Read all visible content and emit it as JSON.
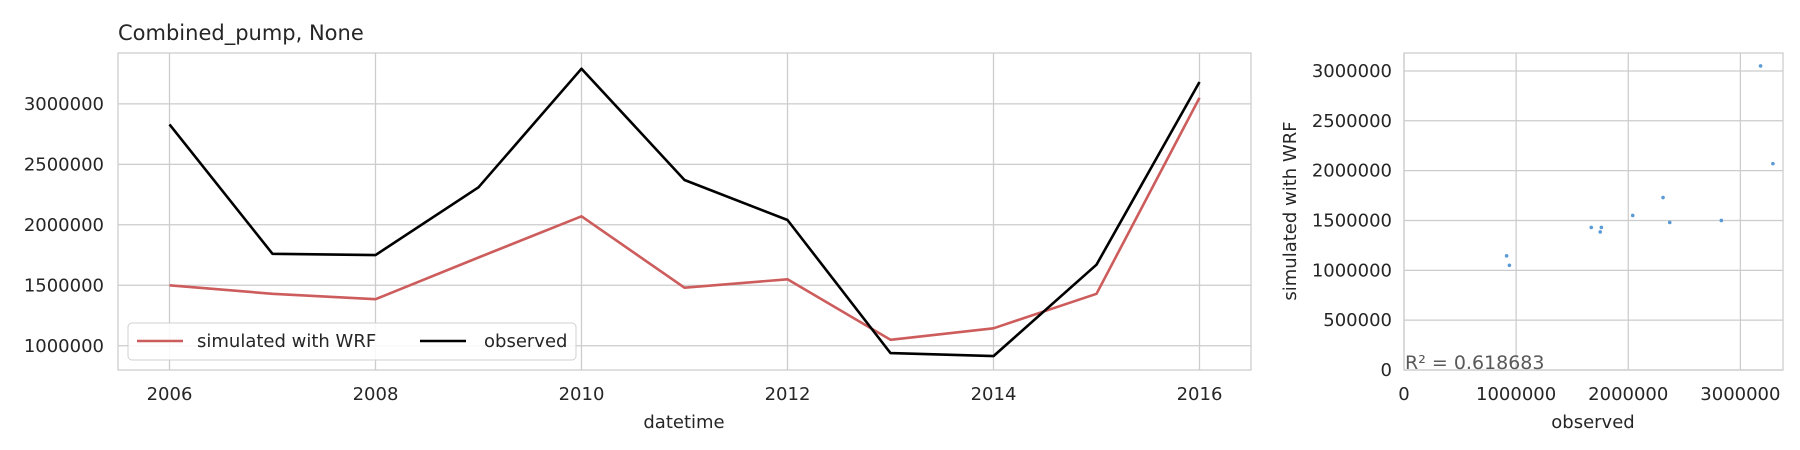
{
  "chart_data": [
    {
      "type": "line",
      "title": "Combined_pump, None",
      "xlabel": "datetime",
      "ylabel": "",
      "xlim": [
        2005.5,
        2016.5
      ],
      "ylim": [
        800000,
        3420000
      ],
      "xticks": [
        2006,
        2008,
        2010,
        2012,
        2014,
        2016
      ],
      "yticks": [
        1000000,
        1500000,
        2000000,
        2500000,
        3000000
      ],
      "x": [
        2006,
        2007,
        2008,
        2009,
        2010,
        2011,
        2012,
        2013,
        2014,
        2015,
        2016
      ],
      "series": [
        {
          "name": "simulated with WRF",
          "color": "#cd5c5c",
          "values": [
            1500000,
            1430000,
            1385000,
            1730000,
            2070000,
            1480000,
            1550000,
            1050000,
            1145000,
            1430000,
            3050000
          ]
        },
        {
          "name": "observed",
          "color": "#000000",
          "values": [
            2830000,
            1760000,
            1750000,
            2310000,
            3290000,
            2370000,
            2040000,
            940000,
            915000,
            1670000,
            3180000
          ]
        }
      ],
      "grid": true,
      "legend": {
        "placement": "lower-left",
        "columns": 2
      }
    },
    {
      "type": "scatter",
      "xlabel": "observed",
      "ylabel": "simulated with WRF",
      "xlim": [
        0,
        3380000
      ],
      "ylim": [
        0,
        3180000
      ],
      "xticks": [
        0,
        1000000,
        2000000,
        3000000
      ],
      "yticks": [
        0,
        500000,
        1000000,
        1500000,
        2000000,
        2500000,
        3000000
      ],
      "points": [
        {
          "x": 2830000,
          "y": 1500000
        },
        {
          "x": 1760000,
          "y": 1430000
        },
        {
          "x": 1750000,
          "y": 1385000
        },
        {
          "x": 2310000,
          "y": 1730000
        },
        {
          "x": 3290000,
          "y": 2070000
        },
        {
          "x": 2370000,
          "y": 1480000
        },
        {
          "x": 2040000,
          "y": 1550000
        },
        {
          "x": 940000,
          "y": 1050000
        },
        {
          "x": 915000,
          "y": 1145000
        },
        {
          "x": 1670000,
          "y": 1430000
        },
        {
          "x": 3180000,
          "y": 3050000
        }
      ],
      "color": "#5b9bd5",
      "annotation": "R² = 0.618683",
      "grid": true
    }
  ]
}
